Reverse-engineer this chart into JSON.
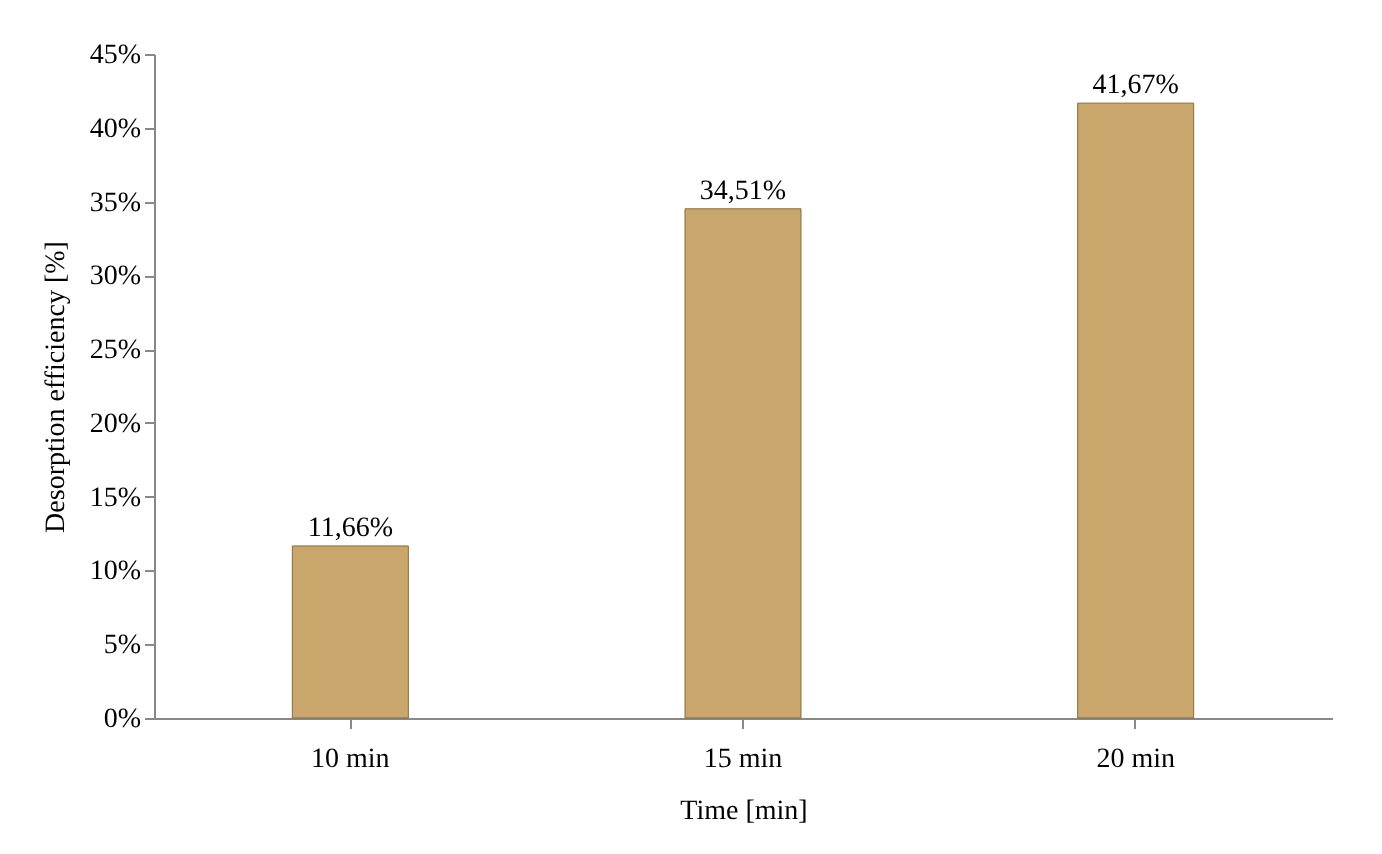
{
  "chart_data": {
    "type": "bar",
    "xlabel": "Time [min]",
    "ylabel": "Desorption efficiency [%]",
    "categories": [
      "10 min",
      "15 min",
      "20 min"
    ],
    "values": [
      11.66,
      34.51,
      41.67
    ],
    "value_labels": [
      "11,66%",
      "34,51%",
      "41,67%"
    ],
    "color": "#c9a66b",
    "ylim": [
      0,
      45
    ],
    "yticks": [
      {
        "value": 0,
        "label": "0%"
      },
      {
        "value": 5,
        "label": "5%"
      },
      {
        "value": 10,
        "label": "10%"
      },
      {
        "value": 15,
        "label": "15%"
      },
      {
        "value": 20,
        "label": "20%"
      },
      {
        "value": 25,
        "label": "25%"
      },
      {
        "value": 30,
        "label": "30%"
      },
      {
        "value": 35,
        "label": "35%"
      },
      {
        "value": 40,
        "label": "40%"
      },
      {
        "value": 45,
        "label": "45%"
      }
    ],
    "grid": false
  }
}
